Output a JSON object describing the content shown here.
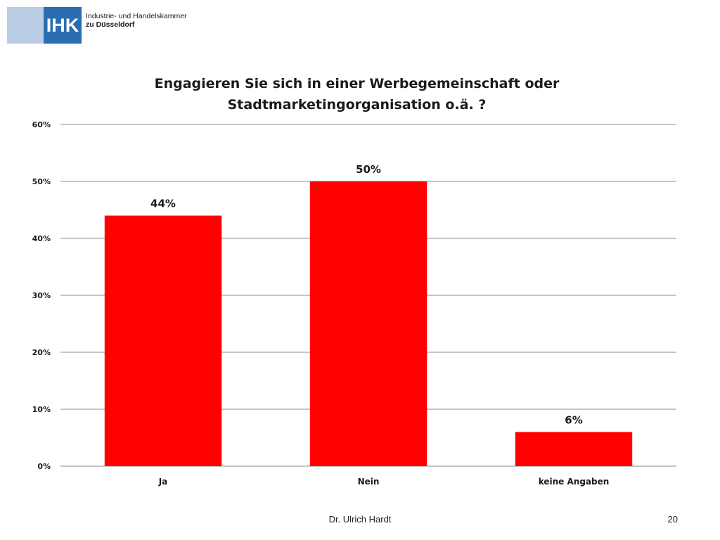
{
  "logo": {
    "abbr": "IHK",
    "line1": "Industrie- und Handelskammer",
    "line2": "zu Düsseldorf",
    "colors": {
      "light": "#b9cde4",
      "dark": "#2a6db1"
    }
  },
  "chart_data": {
    "type": "bar",
    "title": "Engagieren Sie sich in einer Werbegemeinschaft oder Stadtmarketingorganisation o.ä. ?",
    "title_lines": [
      "Engagieren Sie sich in einer Werbegemeinschaft oder",
      "Stadtmarketingorganisation o.ä. ?"
    ],
    "categories": [
      "Ja",
      "Nein",
      "keine Angaben"
    ],
    "values": [
      44,
      50,
      6
    ],
    "value_labels": [
      "44%",
      "50%",
      "6%"
    ],
    "ylim": [
      0,
      60
    ],
    "yticks": [
      0,
      10,
      20,
      30,
      40,
      50,
      60
    ],
    "ytick_labels": [
      "0%",
      "10%",
      "20%",
      "30%",
      "40%",
      "50%",
      "60%"
    ],
    "xlabel": "",
    "ylabel": "",
    "grid": true,
    "bar_color": "#ff0000"
  },
  "footer": {
    "author": "Dr. Ulrich Hardt",
    "page": "20"
  }
}
